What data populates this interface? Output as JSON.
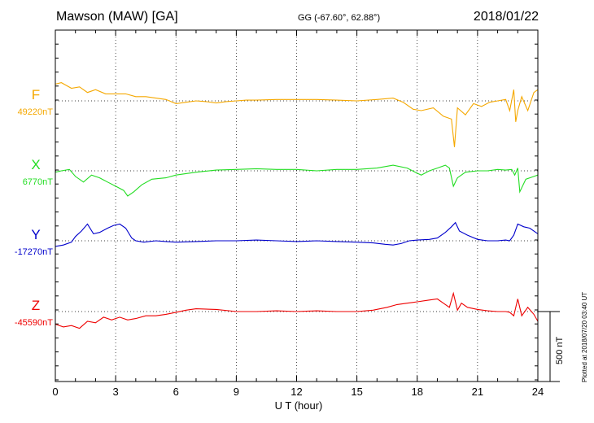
{
  "header": {
    "station": "Mawson (MAW)  [GA]",
    "coords": "GG (-67.60°,  62.88°)",
    "date": "2018/01/22"
  },
  "footer_note": "Plotted at 2018/07/20 03:40 UT",
  "chart_data": {
    "type": "line",
    "xlabel": "U T (hour)",
    "xlim": [
      0,
      24
    ],
    "xticks": [
      0,
      3,
      6,
      9,
      12,
      15,
      18,
      21,
      24
    ],
    "grid": true,
    "scale_bar": {
      "label": "500 nT",
      "value": 500,
      "unit": "nT"
    },
    "series": [
      {
        "name": "F",
        "baseline_label": "49220nT",
        "baseline": 49220,
        "color": "#f5a800",
        "x": [
          0,
          0.3,
          0.8,
          1.2,
          1.6,
          2.0,
          2.5,
          3.0,
          3.5,
          4.0,
          4.5,
          5.0,
          5.5,
          6.0,
          6.5,
          7.0,
          7.5,
          8.0,
          8.5,
          9.0,
          9.5,
          10,
          11,
          12,
          13,
          14,
          15,
          16,
          16.8,
          17.3,
          17.8,
          18.2,
          18.8,
          19.3,
          19.7,
          19.85,
          20.0,
          20.4,
          20.8,
          21.2,
          21.6,
          22.0,
          22.4,
          22.6,
          22.8,
          22.9,
          23.0,
          23.2,
          23.5,
          23.8,
          24.0
        ],
        "values": [
          49340,
          49350,
          49310,
          49320,
          49280,
          49300,
          49270,
          49270,
          49270,
          49250,
          49250,
          49240,
          49230,
          49200,
          49210,
          49220,
          49215,
          49205,
          49215,
          49220,
          49225,
          49225,
          49230,
          49230,
          49230,
          49225,
          49220,
          49230,
          49240,
          49210,
          49160,
          49150,
          49170,
          49110,
          49090,
          48890,
          49170,
          49120,
          49200,
          49180,
          49210,
          49220,
          49230,
          49150,
          49300,
          49070,
          49150,
          49250,
          49150,
          49280,
          49300
        ]
      },
      {
        "name": "X",
        "baseline_label": "6770nT",
        "baseline": 6770,
        "color": "#22dd22",
        "x": [
          0,
          0.3,
          0.7,
          1.0,
          1.4,
          1.8,
          2.2,
          2.6,
          3.0,
          3.4,
          3.6,
          3.9,
          4.3,
          4.8,
          5.5,
          6.0,
          6.5,
          7.0,
          8.0,
          9.0,
          10,
          11,
          12,
          13,
          14,
          15,
          16,
          16.8,
          17.5,
          17.9,
          18.2,
          18.6,
          19.0,
          19.4,
          19.6,
          19.8,
          20.0,
          20.4,
          21.0,
          21.5,
          22.0,
          22.4,
          22.7,
          22.85,
          23.0,
          23.1,
          23.4,
          23.8,
          24.0
        ],
        "values": [
          6760,
          6770,
          6780,
          6730,
          6690,
          6740,
          6720,
          6690,
          6660,
          6630,
          6590,
          6620,
          6670,
          6710,
          6720,
          6740,
          6750,
          6760,
          6775,
          6780,
          6785,
          6780,
          6780,
          6770,
          6780,
          6780,
          6790,
          6810,
          6790,
          6760,
          6740,
          6770,
          6790,
          6810,
          6790,
          6660,
          6720,
          6760,
          6770,
          6770,
          6780,
          6775,
          6780,
          6740,
          6790,
          6620,
          6710,
          6730,
          6740
        ]
      },
      {
        "name": "Y",
        "baseline_label": "-17270nT",
        "baseline": -17270,
        "color": "#0000cc",
        "x": [
          0,
          0.4,
          0.8,
          1.0,
          1.3,
          1.6,
          1.9,
          2.2,
          2.6,
          2.9,
          3.2,
          3.5,
          3.8,
          4.0,
          4.4,
          5.0,
          5.5,
          6.0,
          7.0,
          8.0,
          9.0,
          10,
          11,
          12,
          13,
          14,
          15,
          15.8,
          16.4,
          16.8,
          17.2,
          17.6,
          18.0,
          18.6,
          19.0,
          19.4,
          19.7,
          19.9,
          20.1,
          20.5,
          21.0,
          21.5,
          22.0,
          22.4,
          22.6,
          22.8,
          23.0,
          23.3,
          23.6,
          24.0
        ],
        "values": [
          -17310,
          -17300,
          -17280,
          -17240,
          -17200,
          -17150,
          -17220,
          -17210,
          -17180,
          -17160,
          -17150,
          -17180,
          -17250,
          -17270,
          -17280,
          -17270,
          -17275,
          -17280,
          -17275,
          -17270,
          -17270,
          -17265,
          -17270,
          -17275,
          -17270,
          -17275,
          -17280,
          -17285,
          -17295,
          -17300,
          -17290,
          -17270,
          -17265,
          -17260,
          -17250,
          -17210,
          -17170,
          -17140,
          -17200,
          -17230,
          -17260,
          -17270,
          -17270,
          -17265,
          -17270,
          -17230,
          -17150,
          -17170,
          -17180,
          -17220
        ]
      },
      {
        "name": "Z",
        "baseline_label": "-45590nT",
        "baseline": -45590,
        "color": "#ee0000",
        "x": [
          0,
          0.4,
          0.8,
          1.2,
          1.6,
          2.0,
          2.4,
          2.8,
          3.2,
          3.6,
          4.0,
          4.5,
          5.0,
          5.5,
          6.0,
          6.5,
          7.0,
          8.0,
          9.0,
          10,
          11,
          12,
          13,
          14,
          15,
          15.8,
          16.5,
          17.0,
          17.5,
          18.0,
          18.5,
          19.0,
          19.3,
          19.6,
          19.8,
          20.0,
          20.2,
          20.5,
          21.0,
          21.5,
          22.0,
          22.4,
          22.6,
          22.8,
          23.0,
          23.2,
          23.5,
          23.8,
          24.0
        ],
        "values": [
          -45680,
          -45700,
          -45690,
          -45710,
          -45660,
          -45670,
          -45630,
          -45650,
          -45630,
          -45650,
          -45640,
          -45620,
          -45620,
          -45610,
          -45595,
          -45580,
          -45570,
          -45575,
          -45590,
          -45590,
          -45585,
          -45590,
          -45585,
          -45590,
          -45590,
          -45580,
          -45560,
          -45540,
          -45530,
          -45520,
          -45510,
          -45500,
          -45530,
          -45560,
          -45460,
          -45580,
          -45530,
          -45560,
          -45575,
          -45585,
          -45590,
          -45590,
          -45595,
          -45620,
          -45500,
          -45620,
          -45560,
          -45610,
          -45660
        ]
      }
    ]
  }
}
